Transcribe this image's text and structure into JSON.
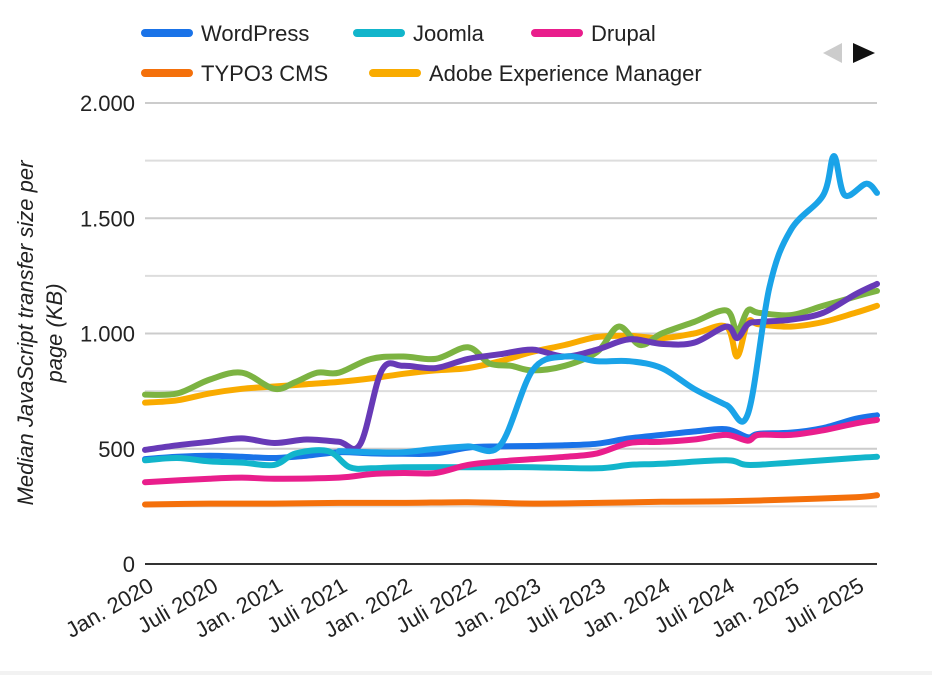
{
  "chart_data": {
    "type": "line",
    "ylabel": [
      "Median JavaScript transfer size per",
      "page (KB)"
    ],
    "ylim": [
      0,
      2000
    ],
    "yticks": [
      0,
      500,
      1000,
      1500,
      2000
    ],
    "ytick_labels": [
      "0",
      "500",
      "1.000",
      "1.500",
      "2.000"
    ],
    "xticks": [
      "2020-01",
      "2020-07",
      "2021-01",
      "2021-07",
      "2022-01",
      "2022-07",
      "2023-01",
      "2023-07",
      "2024-01",
      "2024-07",
      "2025-01",
      "2025-07"
    ],
    "xtick_labels": [
      "Jan. 2020",
      "Juli 2020",
      "Jan. 2021",
      "Juli 2021",
      "Jan. 2022",
      "Juli 2022",
      "Jan. 2023",
      "Juli 2023",
      "Jan. 2024",
      "Juli 2024",
      "Jan. 2025",
      "Juli 2025"
    ],
    "grid": true,
    "legend_position": "top",
    "legend_pager": [
      "◀",
      "▶"
    ],
    "series": [
      {
        "name": "WordPress",
        "color": "#1a73e8",
        "in_legend": true,
        "points": [
          [
            "2020-01",
            455
          ],
          [
            "2020-04",
            465
          ],
          [
            "2020-07",
            470
          ],
          [
            "2020-10",
            465
          ],
          [
            "2021-01",
            460
          ],
          [
            "2021-04",
            470
          ],
          [
            "2021-07",
            485
          ],
          [
            "2021-10",
            480
          ],
          [
            "2022-01",
            478
          ],
          [
            "2022-04",
            480
          ],
          [
            "2022-07",
            505
          ],
          [
            "2022-10",
            510
          ],
          [
            "2023-01",
            512
          ],
          [
            "2023-04",
            515
          ],
          [
            "2023-07",
            522
          ],
          [
            "2023-10",
            545
          ],
          [
            "2024-01",
            560
          ],
          [
            "2024-04",
            575
          ],
          [
            "2024-07",
            585
          ],
          [
            "2024-09",
            550
          ],
          [
            "2024-10",
            565
          ],
          [
            "2025-01",
            570
          ],
          [
            "2025-04",
            590
          ],
          [
            "2025-07",
            630
          ],
          [
            "2025-09",
            645
          ]
        ]
      },
      {
        "name": "Joomla",
        "color": "#12b5cb",
        "in_legend": true,
        "points": [
          [
            "2020-01",
            450
          ],
          [
            "2020-04",
            460
          ],
          [
            "2020-07",
            445
          ],
          [
            "2020-10",
            440
          ],
          [
            "2021-01",
            430
          ],
          [
            "2021-03",
            480
          ],
          [
            "2021-06",
            490
          ],
          [
            "2021-08",
            420
          ],
          [
            "2021-10",
            415
          ],
          [
            "2022-01",
            420
          ],
          [
            "2022-07",
            420
          ],
          [
            "2022-10",
            420
          ],
          [
            "2023-01",
            420
          ],
          [
            "2023-07",
            415
          ],
          [
            "2023-10",
            430
          ],
          [
            "2024-01",
            435
          ],
          [
            "2024-07",
            450
          ],
          [
            "2024-09",
            430
          ],
          [
            "2025-01",
            440
          ],
          [
            "2025-07",
            460
          ],
          [
            "2025-09",
            465
          ]
        ]
      },
      {
        "name": "Drupal",
        "color": "#e91e8c",
        "in_legend": true,
        "points": [
          [
            "2020-01",
            355
          ],
          [
            "2020-07",
            370
          ],
          [
            "2020-10",
            375
          ],
          [
            "2021-01",
            370
          ],
          [
            "2021-07",
            375
          ],
          [
            "2021-10",
            390
          ],
          [
            "2022-01",
            395
          ],
          [
            "2022-04",
            395
          ],
          [
            "2022-07",
            430
          ],
          [
            "2022-10",
            445
          ],
          [
            "2023-01",
            455
          ],
          [
            "2023-04",
            465
          ],
          [
            "2023-07",
            480
          ],
          [
            "2023-10",
            525
          ],
          [
            "2024-01",
            530
          ],
          [
            "2024-04",
            540
          ],
          [
            "2024-07",
            560
          ],
          [
            "2024-09",
            535
          ],
          [
            "2024-10",
            560
          ],
          [
            "2025-01",
            560
          ],
          [
            "2025-04",
            580
          ],
          [
            "2025-07",
            610
          ],
          [
            "2025-09",
            625
          ]
        ]
      },
      {
        "name": "TYPO3 CMS",
        "color": "#f4700b",
        "in_legend": true,
        "points": [
          [
            "2020-01",
            258
          ],
          [
            "2020-07",
            262
          ],
          [
            "2021-01",
            262
          ],
          [
            "2021-07",
            265
          ],
          [
            "2022-01",
            265
          ],
          [
            "2022-07",
            268
          ],
          [
            "2023-01",
            262
          ],
          [
            "2023-07",
            265
          ],
          [
            "2024-01",
            270
          ],
          [
            "2024-07",
            272
          ],
          [
            "2025-01",
            280
          ],
          [
            "2025-07",
            290
          ],
          [
            "2025-09",
            298
          ]
        ]
      },
      {
        "name": "Adobe Experience Manager",
        "color": "#f9ab00",
        "in_legend": true,
        "points": [
          [
            "2020-01",
            700
          ],
          [
            "2020-04",
            710
          ],
          [
            "2020-07",
            740
          ],
          [
            "2020-10",
            760
          ],
          [
            "2021-01",
            770
          ],
          [
            "2021-04",
            780
          ],
          [
            "2021-07",
            790
          ],
          [
            "2021-10",
            805
          ],
          [
            "2022-01",
            825
          ],
          [
            "2022-04",
            840
          ],
          [
            "2022-07",
            850
          ],
          [
            "2022-10",
            880
          ],
          [
            "2023-01",
            920
          ],
          [
            "2023-04",
            950
          ],
          [
            "2023-07",
            985
          ],
          [
            "2023-10",
            990
          ],
          [
            "2024-01",
            980
          ],
          [
            "2024-04",
            1000
          ],
          [
            "2024-07",
            1030
          ],
          [
            "2024-08",
            900
          ],
          [
            "2024-09",
            1050
          ],
          [
            "2024-10",
            1040
          ],
          [
            "2025-01",
            1030
          ],
          [
            "2025-04",
            1050
          ],
          [
            "2025-07",
            1090
          ],
          [
            "2025-09",
            1120
          ]
        ]
      },
      {
        "name": "",
        "color": "#7cb342",
        "in_legend": false,
        "points": [
          [
            "2020-01",
            735
          ],
          [
            "2020-04",
            740
          ],
          [
            "2020-07",
            800
          ],
          [
            "2020-10",
            830
          ],
          [
            "2021-01",
            760
          ],
          [
            "2021-03",
            790
          ],
          [
            "2021-05",
            830
          ],
          [
            "2021-07",
            830
          ],
          [
            "2021-10",
            890
          ],
          [
            "2022-01",
            900
          ],
          [
            "2022-04",
            890
          ],
          [
            "2022-07",
            940
          ],
          [
            "2022-09",
            870
          ],
          [
            "2022-11",
            860
          ],
          [
            "2023-01",
            840
          ],
          [
            "2023-04",
            860
          ],
          [
            "2023-07",
            920
          ],
          [
            "2023-09",
            1030
          ],
          [
            "2023-11",
            950
          ],
          [
            "2024-01",
            1000
          ],
          [
            "2024-04",
            1050
          ],
          [
            "2024-07",
            1100
          ],
          [
            "2024-08",
            1010
          ],
          [
            "2024-09",
            1100
          ],
          [
            "2024-10",
            1090
          ],
          [
            "2025-01",
            1080
          ],
          [
            "2025-04",
            1120
          ],
          [
            "2025-07",
            1160
          ],
          [
            "2025-09",
            1185
          ]
        ]
      },
      {
        "name": "",
        "color": "#673ab7",
        "in_legend": true,
        "points": [
          [
            "2020-01",
            495
          ],
          [
            "2020-04",
            515
          ],
          [
            "2020-07",
            530
          ],
          [
            "2020-10",
            545
          ],
          [
            "2021-01",
            525
          ],
          [
            "2021-04",
            540
          ],
          [
            "2021-07",
            530
          ],
          [
            "2021-09",
            520
          ],
          [
            "2021-11",
            840
          ],
          [
            "2022-01",
            860
          ],
          [
            "2022-04",
            850
          ],
          [
            "2022-07",
            890
          ],
          [
            "2022-10",
            910
          ],
          [
            "2023-01",
            930
          ],
          [
            "2023-04",
            900
          ],
          [
            "2023-07",
            930
          ],
          [
            "2023-10",
            975
          ],
          [
            "2024-01",
            955
          ],
          [
            "2024-04",
            960
          ],
          [
            "2024-07",
            1030
          ],
          [
            "2024-08",
            980
          ],
          [
            "2024-09",
            1040
          ],
          [
            "2024-10",
            1050
          ],
          [
            "2025-01",
            1060
          ],
          [
            "2025-04",
            1090
          ],
          [
            "2025-07",
            1170
          ],
          [
            "2025-09",
            1215
          ]
        ]
      },
      {
        "name": "",
        "color": "#1aa3e8",
        "in_legend": false,
        "points": [
          [
            "2021-07",
            490
          ],
          [
            "2021-10",
            485
          ],
          [
            "2022-01",
            485
          ],
          [
            "2022-04",
            500
          ],
          [
            "2022-07",
            510
          ],
          [
            "2022-10",
            515
          ],
          [
            "2023-01",
            840
          ],
          [
            "2023-04",
            900
          ],
          [
            "2023-07",
            880
          ],
          [
            "2023-10",
            880
          ],
          [
            "2024-01",
            850
          ],
          [
            "2024-04",
            760
          ],
          [
            "2024-07",
            690
          ],
          [
            "2024-09",
            650
          ],
          [
            "2024-11",
            1200
          ],
          [
            "2025-01",
            1450
          ],
          [
            "2025-04",
            1600
          ],
          [
            "2025-05",
            1770
          ],
          [
            "2025-06",
            1600
          ],
          [
            "2025-08",
            1650
          ],
          [
            "2025-09",
            1610
          ]
        ]
      }
    ]
  }
}
